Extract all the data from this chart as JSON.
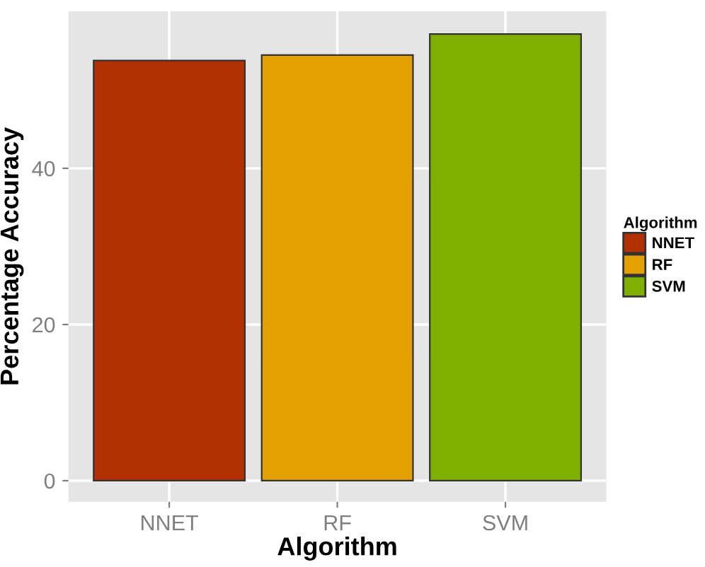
{
  "chart_data": {
    "type": "bar",
    "xlabel": "Algorithm",
    "ylabel": "Percentage Accuracy",
    "legend_title": "Algorithm",
    "categories": [
      "NNET",
      "RF",
      "SVM"
    ],
    "series": [
      {
        "name": "NNET",
        "color": "#b22f02",
        "values": [
          53.8,
          null,
          null
        ]
      },
      {
        "name": "RF",
        "color": "#e3a000",
        "values": [
          null,
          54.5,
          null
        ]
      },
      {
        "name": "SVM",
        "color": "#7faf00",
        "values": [
          null,
          null,
          57.2
        ]
      }
    ],
    "ylim": [
      -2.7,
      60.1
    ],
    "yticks": [
      0,
      20,
      40
    ],
    "grid": true,
    "legend": "right"
  }
}
